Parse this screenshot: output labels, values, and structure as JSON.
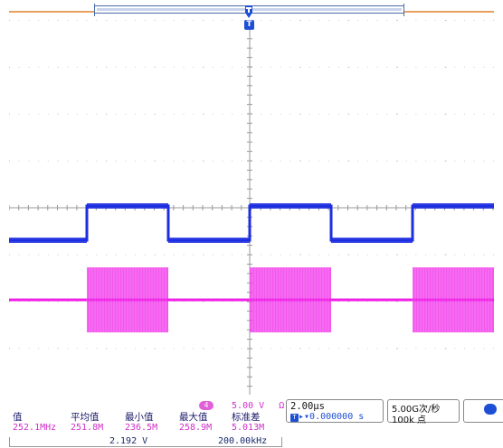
{
  "channel": {
    "badge": "4",
    "scale": "5.00 V",
    "coupling": "Ω"
  },
  "measurements": {
    "columns": [
      {
        "header": "值",
        "value": "252.1MHz"
      },
      {
        "header": "平均值",
        "value": "251.8M"
      },
      {
        "header": "最小值",
        "value": "236.5M"
      },
      {
        "header": "最大值",
        "value": "258.9M"
      },
      {
        "header": "标准差",
        "value": "5.013M"
      }
    ]
  },
  "cursor": {
    "voltage": "2.192 V",
    "frequency": "200.00kHz"
  },
  "timebase": {
    "scale": "2.00µs",
    "trigger_badge": "T",
    "position": "0.000000 s"
  },
  "acquisition": {
    "rate": "5.00G次/秒",
    "points": "100k 点"
  },
  "trigger": {
    "marker_label": "T"
  },
  "colors": {
    "ch1": "#1d2ee0",
    "ch4": "#f020e8",
    "grid": "#b0b0b0",
    "record_bar": "#e8a060"
  }
}
